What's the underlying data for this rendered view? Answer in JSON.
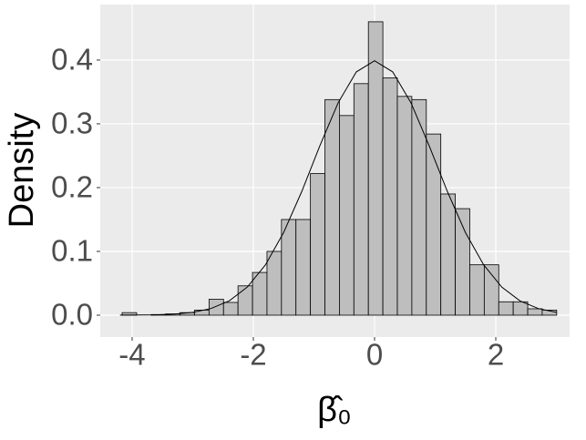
{
  "chart_data": {
    "type": "histogram",
    "x_label": "β̂₀",
    "y_label": "Density",
    "bins": [
      -4.165,
      -3.926,
      -3.687,
      -3.448,
      -3.209,
      -2.97,
      -2.731,
      -2.492,
      -2.253,
      -2.014,
      -1.775,
      -1.536,
      -1.297,
      -1.058,
      -0.819,
      -0.58,
      -0.341,
      -0.102,
      0.137,
      0.376,
      0.615,
      0.854,
      1.093,
      1.332,
      1.571,
      1.81,
      2.049,
      2.288,
      2.527,
      2.766,
      3.005
    ],
    "values": [
      0.004,
      0,
      0.001,
      0.002,
      0.004,
      0.008,
      0.025,
      0.02,
      0.046,
      0.067,
      0.1,
      0.15,
      0.15,
      0.222,
      0.338,
      0.313,
      0.363,
      0.46,
      0.372,
      0.343,
      0.338,
      0.284,
      0.19,
      0.167,
      0.079,
      0.079,
      0.021,
      0.021,
      0.01,
      0.008
    ],
    "color": "#bebebe",
    "density_curve": {
      "x": [
        -4.2,
        -3.9,
        -3.6,
        -3.3,
        -3.0,
        -2.7,
        -2.4,
        -2.1,
        -1.8,
        -1.5,
        -1.2,
        -0.9,
        -0.6,
        -0.3,
        0,
        0.3,
        0.6,
        0.9,
        1.2,
        1.5,
        1.8,
        2.1,
        2.4,
        2.7,
        3.0
      ],
      "y": [
        0.0001,
        0.0002,
        0.0006,
        0.0017,
        0.0044,
        0.0104,
        0.0224,
        0.044,
        0.079,
        0.1295,
        0.1942,
        0.2661,
        0.3332,
        0.3814,
        0.3989,
        0.3814,
        0.3332,
        0.2661,
        0.1942,
        0.1295,
        0.079,
        0.044,
        0.0224,
        0.0104,
        0.0044
      ]
    },
    "xlim": [
      -4.526,
      3.218
    ],
    "ylim": [
      -0.0343,
      0.487
    ],
    "xticks": [
      -4,
      -2,
      0,
      2
    ],
    "yticks": [
      {
        "value": 0,
        "label": "0.0"
      },
      0.1,
      0.2,
      0.3,
      0.4
    ],
    "grid": true
  }
}
